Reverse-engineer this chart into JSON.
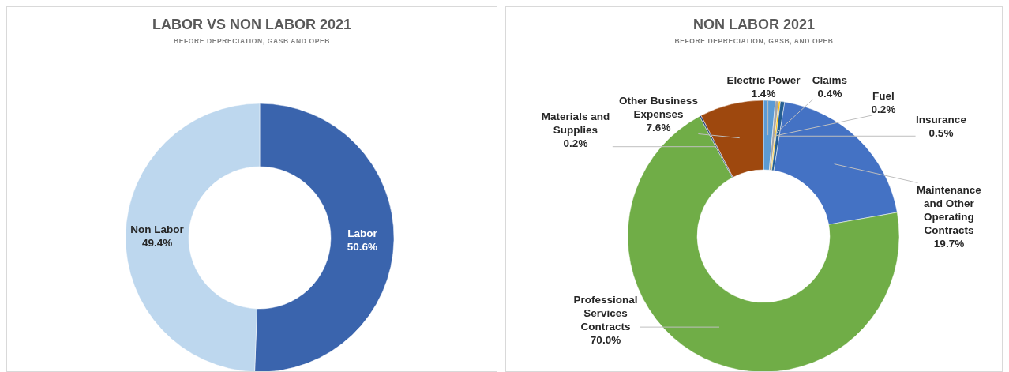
{
  "chart_data": [
    {
      "type": "donut",
      "title": "LABOR VS NON LABOR 2021",
      "subtitle": "BEFORE DEPRECIATION, GASB AND OPEB",
      "categories": [
        "Labor",
        "Non Labor"
      ],
      "values": [
        50.6,
        49.4
      ],
      "colors": [
        "#3a64ad",
        "#bdd7ee"
      ],
      "value_labels": [
        "50.6%",
        "49.4%"
      ]
    },
    {
      "type": "donut",
      "title": "NON LABOR 2021",
      "subtitle": "BEFORE DEPRECIATION, GASB, AND OPEB",
      "categories": [
        "Electric Power",
        "Claims",
        "Fuel",
        "Insurance",
        "Maintenance and Other Operating Contracts",
        "Professional Services Contracts",
        "Materials and Supplies",
        "Other Business Expenses"
      ],
      "values": [
        1.4,
        0.4,
        0.2,
        0.5,
        19.7,
        70.0,
        0.2,
        7.6
      ],
      "colors": [
        "#5b9bd5",
        "#a5a5a5",
        "#ffc000",
        "#255e91",
        "#4472c4",
        "#70ad47",
        "#264478",
        "#9e480e"
      ],
      "value_labels": [
        "1.4%",
        "0.4%",
        "0.2%",
        "0.5%",
        "19.7%",
        "70.0%",
        "0.2%",
        "7.6%"
      ]
    }
  ]
}
